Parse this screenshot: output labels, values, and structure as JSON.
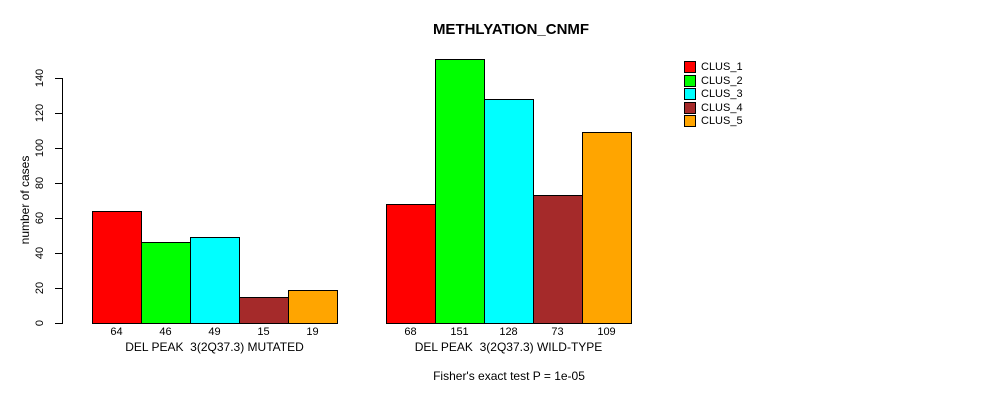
{
  "chart_data": {
    "type": "bar",
    "title": "METHLYATION_CNMF",
    "ylabel": "number of cases",
    "ylim": [
      0,
      140
    ],
    "yticks": [
      0,
      20,
      40,
      60,
      80,
      100,
      120,
      140
    ],
    "grid": false,
    "background": "#ffffff",
    "legend": {
      "position": "top-right",
      "entries": [
        {
          "label": "CLUS_1",
          "color": "#FF0000"
        },
        {
          "label": "CLUS_2",
          "color": "#00FF00"
        },
        {
          "label": "CLUS_3",
          "color": "#00FFFF"
        },
        {
          "label": "CLUS_4",
          "color": "#A52A2A"
        },
        {
          "label": "CLUS_5",
          "color": "#FFA500"
        }
      ]
    },
    "groups": [
      {
        "label": "DEL PEAK  3(2Q37.3) MUTATED",
        "values": [
          64,
          46,
          49,
          15,
          19
        ]
      },
      {
        "label": "DEL PEAK  3(2Q37.3) WILD-TYPE",
        "values": [
          68,
          151,
          128,
          73,
          109
        ]
      }
    ],
    "footnote": "Fisher's exact test P = 1e-05"
  }
}
